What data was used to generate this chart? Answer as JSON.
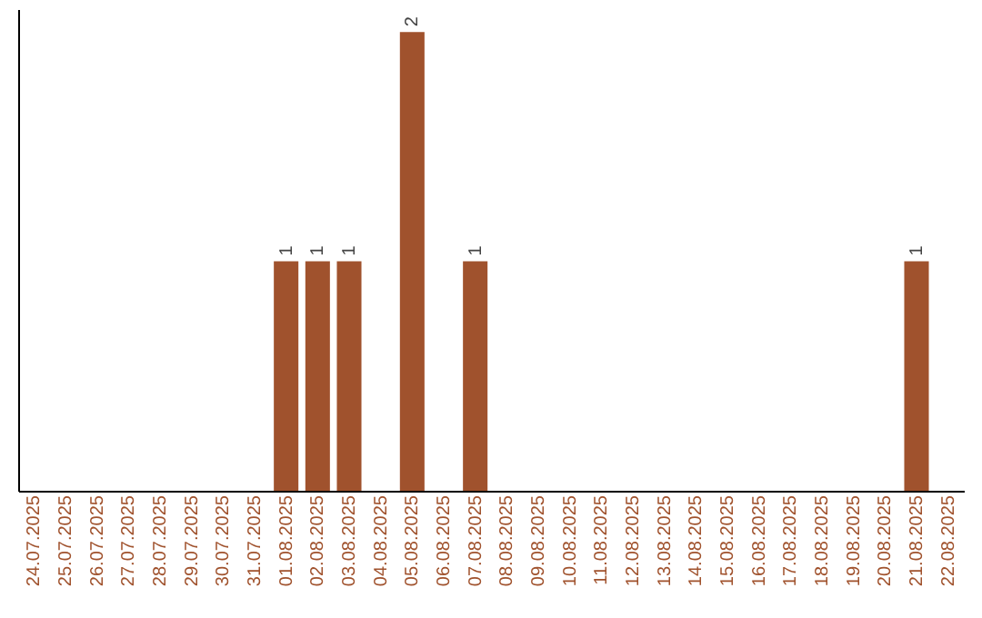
{
  "chart_data": {
    "type": "bar",
    "categories": [
      "24.07.2025",
      "25.07.2025",
      "26.07.2025",
      "27.07.2025",
      "28.07.2025",
      "29.07.2025",
      "30.07.2025",
      "31.07.2025",
      "01.08.2025",
      "02.08.2025",
      "03.08.2025",
      "04.08.2025",
      "05.08.2025",
      "06.08.2025",
      "07.08.2025",
      "08.08.2025",
      "09.08.2025",
      "10.08.2025",
      "11.08.2025",
      "12.08.2025",
      "13.08.2025",
      "14.08.2025",
      "15.08.2025",
      "16.08.2025",
      "17.08.2025",
      "18.08.2025",
      "19.08.2025",
      "20.08.2025",
      "21.08.2025",
      "22.08.2025"
    ],
    "values": [
      0,
      0,
      0,
      0,
      0,
      0,
      0,
      0,
      1,
      1,
      1,
      0,
      2,
      0,
      1,
      0,
      0,
      0,
      0,
      0,
      0,
      0,
      0,
      0,
      0,
      0,
      0,
      0,
      1,
      0
    ],
    "value_labels": [
      null,
      null,
      null,
      null,
      null,
      null,
      null,
      null,
      "1",
      "1",
      "1",
      null,
      "2",
      null,
      "1",
      null,
      null,
      null,
      null,
      null,
      null,
      null,
      null,
      null,
      null,
      null,
      null,
      null,
      "1",
      null
    ],
    "color": "#a0522d",
    "ylim": [
      0,
      2.1
    ],
    "tick_labels": "x",
    "grid": false
  }
}
